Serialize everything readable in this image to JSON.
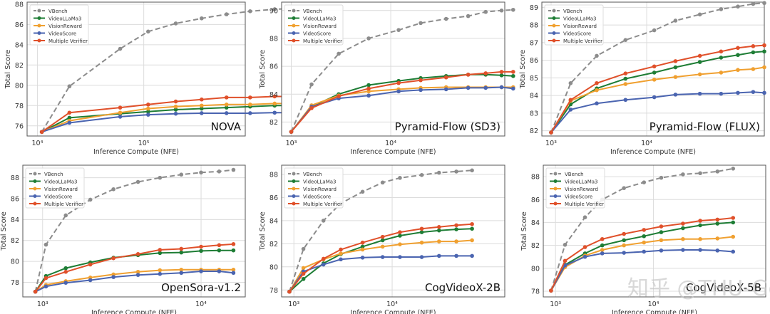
{
  "watermark": "知乎 @THU-GenAI",
  "legend_labels": [
    "VBench",
    "VideoLLaMa3",
    "VisionReward",
    "VideoScore",
    "Multiple Verifier"
  ],
  "colors": {
    "VBench": "#8c8c8c",
    "VideoLLaMa3": "#1e7d35",
    "VisionReward": "#f0a030",
    "VideoScore": "#4a64b0",
    "Multiple Verifier": "#e0502a"
  },
  "chart_data": [
    {
      "type": "line",
      "title": "NOVA",
      "xlabel": "Inference Compute (NFE)",
      "ylabel": "Total Score",
      "xscale": "log",
      "xlim": [
        8000,
        900000
      ],
      "ylim": [
        75,
        88.2
      ],
      "yticks": [
        76,
        78,
        80,
        82,
        84,
        86,
        88
      ],
      "xticks": [
        {
          "v": 10000,
          "label": "10⁴"
        },
        {
          "v": 100000,
          "label": "10⁵"
        }
      ],
      "legend": "top-left",
      "grid": true,
      "x": [
        11000,
        20000,
        60000,
        110000,
        200000,
        350000,
        600000,
        1000000,
        1700000,
        2900000,
        5000000
      ],
      "series": [
        {
          "name": "VBench",
          "values": [
            75.4,
            79.9,
            83.6,
            85.3,
            86.1,
            86.6,
            87.0,
            87.3,
            87.5,
            87.6,
            87.7
          ]
        },
        {
          "name": "VideoLLaMa3",
          "values": [
            75.4,
            76.8,
            77.2,
            77.4,
            77.6,
            77.7,
            77.8,
            77.9,
            78.0,
            78.0,
            78.0
          ]
        },
        {
          "name": "VisionReward",
          "values": [
            75.4,
            76.5,
            77.3,
            77.7,
            77.9,
            78.0,
            78.1,
            78.1,
            78.2,
            78.2,
            78.1
          ]
        },
        {
          "name": "VideoScore",
          "values": [
            75.4,
            76.3,
            76.9,
            77.1,
            77.2,
            77.25,
            77.25,
            77.25,
            77.3,
            77.3,
            77.1
          ]
        },
        {
          "name": "Multiple Verifier",
          "values": [
            75.4,
            77.3,
            77.8,
            78.1,
            78.4,
            78.6,
            78.8,
            78.8,
            78.9,
            78.9,
            79.0
          ]
        }
      ]
    },
    {
      "type": "line",
      "title": "Pyramid-Flow (SD3)",
      "xlabel": "Inference Compute (NFE)",
      "ylabel": "Total Score",
      "xscale": "log",
      "xlim": [
        800,
        140000
      ],
      "ylim": [
        81,
        90.6
      ],
      "yticks": [
        82,
        84,
        86,
        88,
        90
      ],
      "xticks": [
        {
          "v": 1000,
          "label": "10³"
        },
        {
          "v": 10000,
          "label": "10⁴"
        }
      ],
      "legend": "top-left",
      "grid": true,
      "x": [
        1000,
        1600,
        3000,
        6000,
        12000,
        20000,
        36000,
        60000,
        90000,
        130000,
        170000
      ],
      "series": [
        {
          "name": "VBench",
          "values": [
            81.3,
            84.7,
            86.9,
            88.0,
            88.6,
            89.1,
            89.4,
            89.6,
            89.9,
            90.0,
            90.05
          ]
        },
        {
          "name": "VideoLLaMa3",
          "values": [
            81.3,
            83.1,
            84.0,
            84.65,
            84.95,
            85.15,
            85.3,
            85.4,
            85.4,
            85.35,
            85.3
          ]
        },
        {
          "name": "VisionReward",
          "values": [
            81.3,
            83.2,
            83.9,
            84.2,
            84.35,
            84.45,
            84.5,
            84.5,
            84.5,
            84.5,
            84.5
          ]
        },
        {
          "name": "VideoScore",
          "values": [
            81.3,
            83.1,
            83.7,
            83.9,
            84.2,
            84.3,
            84.35,
            84.45,
            84.45,
            84.5,
            84.4
          ]
        },
        {
          "name": "Multiple Verifier",
          "values": [
            81.3,
            83.0,
            83.85,
            84.4,
            84.8,
            85.0,
            85.2,
            85.4,
            85.5,
            85.6,
            85.6
          ]
        }
      ]
    },
    {
      "type": "line",
      "title": "Pyramid-Flow (FLUX)",
      "xlabel": "Inference Compute (NFE)",
      "ylabel": "Total Score",
      "xscale": "log",
      "xlim": [
        800,
        170000
      ],
      "ylim": [
        81.7,
        89.3
      ],
      "yticks": [
        82,
        83,
        84,
        85,
        86,
        87,
        88,
        89
      ],
      "xticks": [
        {
          "v": 1000,
          "label": "10³"
        },
        {
          "v": 10000,
          "label": "10⁴"
        }
      ],
      "legend": "top-left",
      "grid": true,
      "x": [
        1000,
        1600,
        3000,
        6000,
        12000,
        20000,
        36000,
        60000,
        90000,
        130000,
        170000
      ],
      "series": [
        {
          "name": "VBench",
          "values": [
            81.9,
            84.7,
            86.25,
            87.15,
            87.7,
            88.25,
            88.6,
            88.9,
            89.05,
            89.2,
            89.25
          ]
        },
        {
          "name": "VideoLLaMa3",
          "values": [
            81.9,
            83.5,
            84.4,
            84.95,
            85.3,
            85.6,
            85.9,
            86.15,
            86.3,
            86.45,
            86.5
          ]
        },
        {
          "name": "VisionReward",
          "values": [
            81.9,
            83.7,
            84.3,
            84.65,
            84.9,
            85.05,
            85.2,
            85.3,
            85.45,
            85.5,
            85.6
          ]
        },
        {
          "name": "VideoScore",
          "values": [
            81.9,
            83.2,
            83.55,
            83.75,
            83.9,
            84.05,
            84.1,
            84.1,
            84.15,
            84.2,
            84.15
          ]
        },
        {
          "name": "Multiple Verifier",
          "values": [
            81.9,
            83.75,
            84.7,
            85.25,
            85.65,
            85.95,
            86.25,
            86.5,
            86.7,
            86.8,
            86.85
          ]
        }
      ]
    },
    {
      "type": "line",
      "title": "OpenSora-v1.2",
      "xlabel": "Inference Compute (NFE)",
      "ylabel": "Total Score",
      "xscale": "log",
      "xlim": [
        750,
        19000
      ],
      "ylim": [
        76.6,
        89.2
      ],
      "yticks": [
        78,
        80,
        82,
        84,
        86,
        88
      ],
      "xticks": [
        {
          "v": 1000,
          "label": "10³"
        },
        {
          "v": 10000,
          "label": "10⁴"
        }
      ],
      "legend": "top-left",
      "grid": true,
      "x": [
        900,
        1050,
        1400,
        2000,
        2800,
        4000,
        5500,
        7500,
        10000,
        13000,
        16000
      ],
      "series": [
        {
          "name": "VBench",
          "values": [
            77.1,
            81.6,
            84.4,
            85.9,
            86.9,
            87.6,
            88.0,
            88.3,
            88.5,
            88.6,
            88.75
          ]
        },
        {
          "name": "VideoLLaMa3",
          "values": [
            77.1,
            78.6,
            79.35,
            79.9,
            80.35,
            80.6,
            80.8,
            80.85,
            81.0,
            81.05,
            81.05
          ]
        },
        {
          "name": "VisionReward",
          "values": [
            77.1,
            77.75,
            78.1,
            78.45,
            78.75,
            79.0,
            79.15,
            79.2,
            79.2,
            79.2,
            79.2
          ]
        },
        {
          "name": "VideoScore",
          "values": [
            77.1,
            77.6,
            77.95,
            78.2,
            78.5,
            78.7,
            78.8,
            78.9,
            79.05,
            79.05,
            78.9
          ]
        },
        {
          "name": "Multiple Verifier",
          "values": [
            77.1,
            78.4,
            79.0,
            79.7,
            80.3,
            80.7,
            81.1,
            81.2,
            81.4,
            81.55,
            81.65
          ]
        }
      ]
    },
    {
      "type": "line",
      "title": "CogVideoX-2B",
      "xlabel": "Inference Compute (NFE)",
      "ylabel": "Total Score",
      "xscale": "log",
      "xlim": [
        750,
        140000
      ],
      "ylim": [
        77.4,
        88.8
      ],
      "yticks": [
        78,
        80,
        82,
        84,
        86,
        88
      ],
      "xticks": [
        {
          "v": 1000,
          "label": "10³"
        },
        {
          "v": 10000,
          "label": "10⁴"
        }
      ],
      "legend": "top-left",
      "grid": true,
      "x": [
        900,
        1250,
        2000,
        3000,
        5000,
        8000,
        12000,
        20000,
        30000,
        45000,
        65000
      ],
      "series": [
        {
          "name": "VBench",
          "values": [
            77.85,
            81.55,
            84.0,
            85.5,
            86.5,
            87.3,
            87.7,
            87.95,
            88.15,
            88.25,
            88.35
          ]
        },
        {
          "name": "VideoLLaMa3",
          "values": [
            77.85,
            78.95,
            80.3,
            81.1,
            81.75,
            82.3,
            82.7,
            83.0,
            83.15,
            83.25,
            83.3
          ]
        },
        {
          "name": "VisionReward",
          "values": [
            77.85,
            79.9,
            80.65,
            81.15,
            81.5,
            81.75,
            81.95,
            82.1,
            82.2,
            82.2,
            82.3
          ]
        },
        {
          "name": "VideoScore",
          "values": [
            77.85,
            79.6,
            80.2,
            80.65,
            80.8,
            80.85,
            80.85,
            80.85,
            80.95,
            80.95,
            80.95
          ]
        },
        {
          "name": "Multiple Verifier",
          "values": [
            77.85,
            79.4,
            80.7,
            81.5,
            82.1,
            82.6,
            83.0,
            83.3,
            83.45,
            83.6,
            83.7
          ]
        }
      ]
    },
    {
      "type": "line",
      "title": "CogVideoX-5B",
      "xlabel": "Inference Compute (NFE)",
      "ylabel": "Total Score",
      "xscale": "log",
      "xlim": [
        750,
        140000
      ],
      "ylim": [
        77.5,
        89.0
      ],
      "yticks": [
        78,
        80,
        82,
        84,
        86,
        88
      ],
      "xticks": [
        {
          "v": 1000,
          "label": "10³"
        },
        {
          "v": 10000,
          "label": "10⁴"
        }
      ],
      "legend": "top-left",
      "grid": true,
      "x": [
        900,
        1250,
        2000,
        3000,
        5000,
        8000,
        12000,
        20000,
        30000,
        45000,
        65000
      ],
      "series": [
        {
          "name": "VBench",
          "values": [
            78.05,
            82.05,
            84.45,
            86.0,
            87.0,
            87.5,
            87.9,
            88.2,
            88.3,
            88.45,
            88.7
          ]
        },
        {
          "name": "VideoLLaMa3",
          "values": [
            78.05,
            80.3,
            81.3,
            82.0,
            82.45,
            82.8,
            83.15,
            83.5,
            83.75,
            83.9,
            84.0
          ]
        },
        {
          "name": "VisionReward",
          "values": [
            78.05,
            80.1,
            81.1,
            81.6,
            82.0,
            82.25,
            82.45,
            82.55,
            82.55,
            82.6,
            82.75
          ]
        },
        {
          "name": "VideoScore",
          "values": [
            78.05,
            80.25,
            81.0,
            81.3,
            81.35,
            81.45,
            81.55,
            81.6,
            81.6,
            81.55,
            81.45
          ]
        },
        {
          "name": "Multiple Verifier",
          "values": [
            78.05,
            80.65,
            81.85,
            82.55,
            83.0,
            83.35,
            83.65,
            83.9,
            84.15,
            84.25,
            84.4
          ]
        }
      ]
    }
  ]
}
